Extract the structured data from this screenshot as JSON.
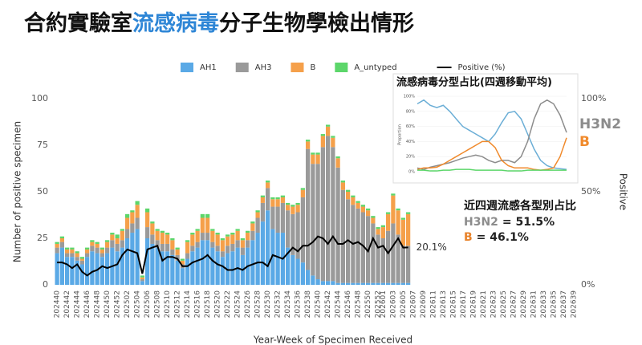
{
  "header": {
    "title_parts": [
      "合約實驗室",
      "流感病毒",
      "分子生物學檢出情形"
    ],
    "title_colors": [
      "#111111",
      "#2E86D6",
      "#111111"
    ]
  },
  "chart_data": [
    {
      "type": "bar",
      "stacked": true,
      "x_label": "Year-Week of Specimen Received",
      "y_label": "Number of positive specimen",
      "y2_label": "Positive",
      "categories": [
        "202440",
        null,
        "202442",
        null,
        "202444",
        null,
        "202446",
        null,
        "202448",
        null,
        "202450",
        null,
        "202452",
        null,
        "202502",
        null,
        "202504",
        null,
        "202506",
        null,
        "202508",
        null,
        "202510",
        null,
        "202512",
        null,
        "202514",
        null,
        "202516",
        null,
        "202518",
        null,
        "202520",
        null,
        "202522",
        null,
        "202524",
        null,
        "202526",
        null,
        "202528",
        null,
        "202530",
        null,
        "202532",
        null,
        "202534",
        null,
        "202536",
        null,
        "202538",
        null,
        "202540",
        null,
        "202542",
        null,
        "202544",
        null,
        "202546",
        null,
        "202548",
        null,
        "202550",
        null,
        "202552",
        "202601",
        null,
        "202603",
        null,
        "202605",
        null,
        "202607",
        null,
        "202609",
        null,
        "202611",
        null,
        "202613",
        null,
        "202615",
        null,
        "202617",
        null,
        "202619",
        null,
        "202621",
        null,
        "202623",
        null,
        "202625",
        null,
        "202627",
        null,
        "202629",
        null,
        "202631",
        null,
        "202633",
        null,
        "202635",
        null,
        "202637",
        null,
        "202639"
      ],
      "series": [
        {
          "name": "AH1",
          "color": "#5AA9E6",
          "values": [
            17,
            20,
            15,
            15,
            13,
            11,
            15,
            18,
            17,
            15,
            17,
            20,
            18,
            20,
            25,
            28,
            30,
            2,
            25,
            22,
            20,
            18,
            18,
            16,
            13,
            9,
            14,
            18,
            20,
            24,
            24,
            20,
            18,
            15,
            17,
            18,
            20,
            16,
            20,
            24,
            28,
            34,
            40,
            30,
            28,
            28,
            20,
            16,
            14,
            12,
            8,
            5,
            3,
            2,
            2,
            2,
            1,
            1,
            1,
            1,
            1,
            1,
            1,
            1,
            1,
            1,
            1,
            1,
            1,
            1,
            1,
            null,
            null,
            null,
            null,
            null,
            null,
            null,
            null,
            null,
            null,
            null,
            null,
            null,
            null,
            null,
            null,
            null,
            null,
            null,
            null,
            null,
            null,
            null,
            null,
            null,
            null,
            null,
            null,
            null,
            null,
            null,
            null,
            null
          ]
        },
        {
          "name": "AH3",
          "color": "#9A9A9A",
          "values": [
            3,
            3,
            2,
            2,
            2,
            2,
            2,
            3,
            3,
            2,
            3,
            4,
            4,
            4,
            5,
            5,
            6,
            1,
            6,
            5,
            4,
            4,
            4,
            3,
            3,
            2,
            3,
            3,
            3,
            4,
            4,
            3,
            3,
            3,
            4,
            4,
            4,
            4,
            4,
            5,
            8,
            10,
            12,
            12,
            14,
            16,
            20,
            22,
            25,
            35,
            65,
            60,
            62,
            72,
            78,
            72,
            62,
            50,
            45,
            42,
            40,
            38,
            36,
            32,
            26,
            24,
            28,
            32,
            26,
            20,
            20,
            null,
            null,
            null,
            null,
            null,
            null,
            null,
            null,
            null,
            null,
            null,
            null,
            null,
            null,
            null,
            null,
            null,
            null,
            null,
            null,
            null,
            null,
            null,
            null,
            null,
            null,
            null,
            null,
            null,
            null,
            null,
            null,
            null
          ]
        },
        {
          "name": "B",
          "color": "#F5A04A",
          "values": [
            2,
            2,
            2,
            2,
            2,
            1,
            2,
            2,
            2,
            2,
            3,
            3,
            3,
            5,
            6,
            6,
            7,
            1,
            8,
            6,
            5,
            6,
            5,
            5,
            3,
            2,
            6,
            6,
            6,
            8,
            8,
            6,
            6,
            6,
            5,
            5,
            5,
            4,
            4,
            4,
            3,
            3,
            3,
            4,
            4,
            3,
            3,
            4,
            4,
            4,
            4,
            5,
            5,
            6,
            5,
            5,
            5,
            4,
            4,
            4,
            3,
            3,
            3,
            3,
            3,
            6,
            9,
            15,
            13,
            14,
            17,
            null,
            null,
            null,
            null,
            null,
            null,
            null,
            null,
            null,
            null,
            null,
            null,
            null,
            null,
            null,
            null,
            null,
            null,
            null,
            null,
            null,
            null,
            null,
            null,
            null,
            null,
            null,
            null,
            null,
            null,
            null,
            null,
            null
          ]
        },
        {
          "name": "A_untyped",
          "color": "#5CD66A",
          "values": [
            1,
            1,
            1,
            1,
            1,
            1,
            1,
            1,
            1,
            1,
            1,
            1,
            2,
            1,
            2,
            1,
            2,
            1,
            2,
            1,
            1,
            1,
            1,
            1,
            1,
            1,
            1,
            1,
            1,
            2,
            2,
            1,
            1,
            1,
            1,
            1,
            1,
            1,
            1,
            1,
            1,
            1,
            1,
            1,
            1,
            1,
            1,
            1,
            1,
            1,
            1,
            1,
            1,
            1,
            1,
            1,
            1,
            1,
            1,
            1,
            1,
            1,
            1,
            1,
            1,
            1,
            1,
            1,
            1,
            1,
            1,
            null,
            null,
            null,
            null,
            null,
            null,
            null,
            null,
            null,
            null,
            null,
            null,
            null,
            null,
            null,
            null,
            null,
            null,
            null,
            null,
            null,
            null,
            null,
            null,
            null,
            null,
            null,
            null,
            null,
            null,
            null,
            null,
            null
          ]
        },
        {
          "name": "Positive (%)",
          "type": "line",
          "axis": "y2",
          "color": "#000000",
          "values": [
            12,
            12,
            11,
            9,
            11,
            7,
            5,
            7,
            8,
            10,
            9,
            10,
            11,
            16,
            19,
            18,
            17,
            6,
            19,
            20,
            21,
            13,
            15,
            15,
            14,
            10,
            10,
            12,
            13,
            14,
            16,
            13,
            11,
            10,
            8,
            8,
            9,
            8,
            10,
            11,
            12,
            12,
            10,
            16,
            15,
            14,
            17,
            20,
            18,
            21,
            21,
            23,
            26,
            25,
            22,
            26,
            22,
            22,
            24,
            22,
            23,
            21,
            18,
            25,
            20,
            21,
            17,
            21,
            25,
            20,
            20.1,
            null,
            null,
            null,
            null,
            null,
            null,
            null,
            null,
            null,
            null,
            null,
            null,
            null,
            null,
            null,
            null,
            null,
            null,
            null,
            null,
            null,
            null,
            null,
            null,
            null,
            null,
            null,
            null,
            null,
            null,
            null,
            null,
            null
          ]
        }
      ],
      "annotations": [
        "20.1%"
      ],
      "ylim": [
        0,
        100
      ],
      "yticks": [
        0,
        25,
        50,
        75,
        100
      ],
      "y2lim": [
        0,
        100
      ],
      "y2ticks": [
        {
          "value": 0,
          "label": "0%"
        },
        {
          "value": 50,
          "label": "50%"
        },
        {
          "value": 100,
          "label": "100%"
        }
      ],
      "grid": false,
      "legend": "top"
    },
    {
      "type": "line",
      "title": "流感病毒分型占比(四週移動平均)",
      "y_label": "Proportion",
      "ylim": [
        0,
        100
      ],
      "yticks": [
        {
          "value": 0,
          "label": "0%"
        },
        {
          "value": 20,
          "label": "20%"
        },
        {
          "value": 40,
          "label": "40%"
        },
        {
          "value": 60,
          "label": "60%"
        },
        {
          "value": 80,
          "label": "80%"
        },
        {
          "value": 100,
          "label": "100%"
        }
      ],
      "series": [
        {
          "color": "#6BAED6",
          "values": [
            90,
            95,
            88,
            85,
            88,
            80,
            70,
            60,
            55,
            50,
            45,
            40,
            50,
            65,
            78,
            80,
            70,
            50,
            30,
            15,
            8,
            5,
            4,
            3
          ]
        },
        {
          "name": "H3N2",
          "color": "#8C8C8C",
          "values": [
            5,
            3,
            6,
            8,
            10,
            12,
            15,
            18,
            20,
            22,
            20,
            15,
            12,
            15,
            15,
            12,
            20,
            40,
            70,
            90,
            95,
            90,
            75,
            52
          ]
        },
        {
          "name": "B",
          "color": "#F08A2C",
          "values": [
            3,
            5,
            5,
            6,
            10,
            15,
            20,
            25,
            30,
            35,
            40,
            40,
            32,
            15,
            8,
            5,
            5,
            5,
            3,
            2,
            3,
            5,
            20,
            45
          ]
        },
        {
          "color": "#5CD66A",
          "values": [
            2,
            2,
            1,
            1,
            2,
            2,
            3,
            3,
            3,
            2,
            2,
            2,
            2,
            2,
            1,
            1,
            1,
            2,
            2,
            2,
            2,
            2,
            2,
            2
          ]
        }
      ]
    }
  ],
  "summary": {
    "title": "近四週流感各型別占比",
    "items": [
      {
        "name": "H3N2",
        "text": "= 51.5%",
        "color": "#8C8C8C"
      },
      {
        "name": "B",
        "text": "= 46.1%",
        "color": "#E8822A"
      }
    ]
  }
}
